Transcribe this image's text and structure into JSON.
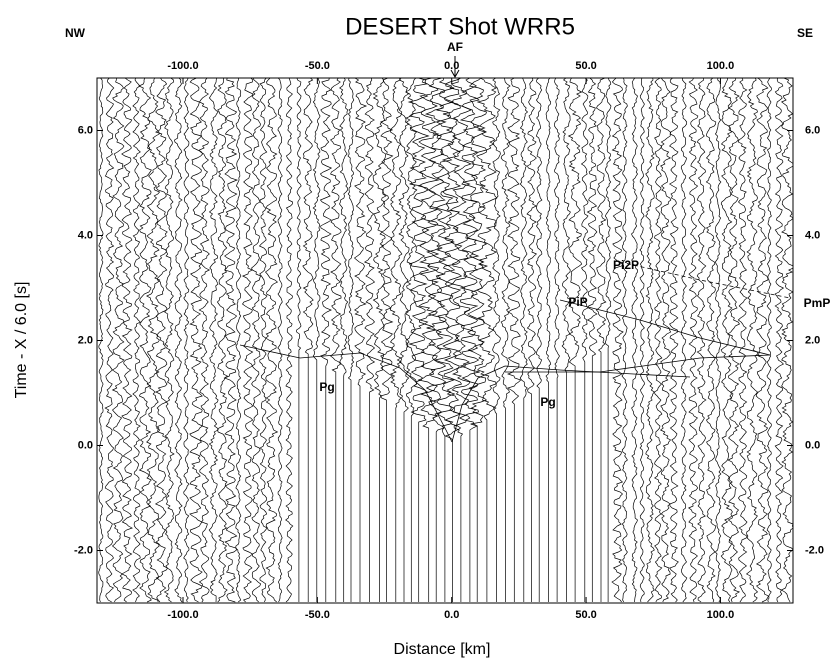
{
  "chart_data": {
    "type": "seismic-section",
    "title": "DESERT   Shot WRR5",
    "x_label": "Distance [km]",
    "y_label": "Time - X / 6.0 [s]",
    "left_label": "NW",
    "right_label": "SE",
    "annotations": [
      "AF",
      "Pg",
      "Pg",
      "PiP",
      "Pi2P",
      "PmP"
    ],
    "xlim": [
      -132,
      127
    ],
    "ylim": [
      -3,
      7
    ],
    "xticks": [
      {
        "value": -100,
        "label": "-100.0"
      },
      {
        "value": -50,
        "label": "-50.0"
      },
      {
        "value": 0,
        "label": "0.0"
      },
      {
        "value": 50,
        "label": "50.0"
      },
      {
        "value": 100,
        "label": "100.0"
      }
    ],
    "yticks": [
      {
        "value": -2,
        "label": "-2.0"
      },
      {
        "value": 0,
        "label": "0.0"
      },
      {
        "value": 2,
        "label": "2.0"
      },
      {
        "value": 4,
        "label": "4.0"
      },
      {
        "value": 6,
        "label": "6.0"
      }
    ]
  }
}
